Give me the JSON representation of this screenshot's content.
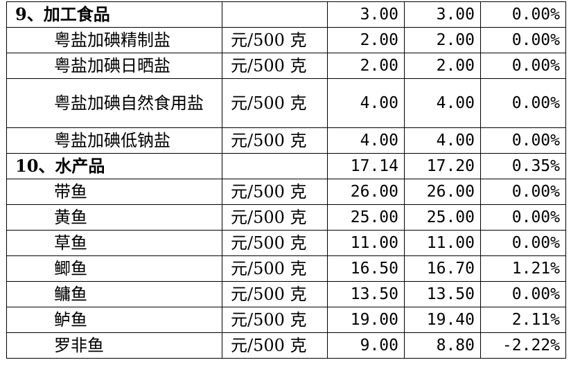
{
  "rows": [
    {
      "type": "category",
      "name": "9、加工食品",
      "unit": "",
      "prev": "3.00",
      "curr": "3.00",
      "change": "0.00%"
    },
    {
      "type": "item",
      "name": "粤盐加碘精制盐",
      "unit": "元/500 克",
      "prev": "2.00",
      "curr": "2.00",
      "change": "0.00%"
    },
    {
      "type": "item",
      "name": "粤盐加碘日晒盐",
      "unit": "元/500 克",
      "prev": "2.00",
      "curr": "2.00",
      "change": "0.00%"
    },
    {
      "type": "item-wrap",
      "name": "粤盐加碘自然食用盐",
      "unit": "元/500 克",
      "prev": "4.00",
      "curr": "4.00",
      "change": "0.00%"
    },
    {
      "type": "item",
      "name": "粤盐加碘低钠盐",
      "unit": "元/500 克",
      "prev": "4.00",
      "curr": "4.00",
      "change": "0.00%"
    },
    {
      "type": "category",
      "name": "10、水产品",
      "unit": "",
      "prev": "17.14",
      "curr": "17.20",
      "change": "0.35%"
    },
    {
      "type": "item",
      "name": "带鱼",
      "unit": "元/500 克",
      "prev": "26.00",
      "curr": "26.00",
      "change": "0.00%"
    },
    {
      "type": "item",
      "name": "黄鱼",
      "unit": "元/500 克",
      "prev": "25.00",
      "curr": "25.00",
      "change": "0.00%"
    },
    {
      "type": "item",
      "name": "草鱼",
      "unit": "元/500 克",
      "prev": "11.00",
      "curr": "11.00",
      "change": "0.00%"
    },
    {
      "type": "item",
      "name": "鲫鱼",
      "unit": "元/500 克",
      "prev": "16.50",
      "curr": "16.70",
      "change": "1.21%"
    },
    {
      "type": "item",
      "name": "鳙鱼",
      "unit": "元/500 克",
      "prev": "13.50",
      "curr": "13.50",
      "change": "0.00%"
    },
    {
      "type": "item",
      "name": "鲈鱼",
      "unit": "元/500 克",
      "prev": "19.00",
      "curr": "19.40",
      "change": "2.11%"
    },
    {
      "type": "item",
      "name": "罗非鱼",
      "unit": "元/500 克",
      "prev": "9.00",
      "curr": "8.80",
      "change": "-2.22%"
    }
  ]
}
